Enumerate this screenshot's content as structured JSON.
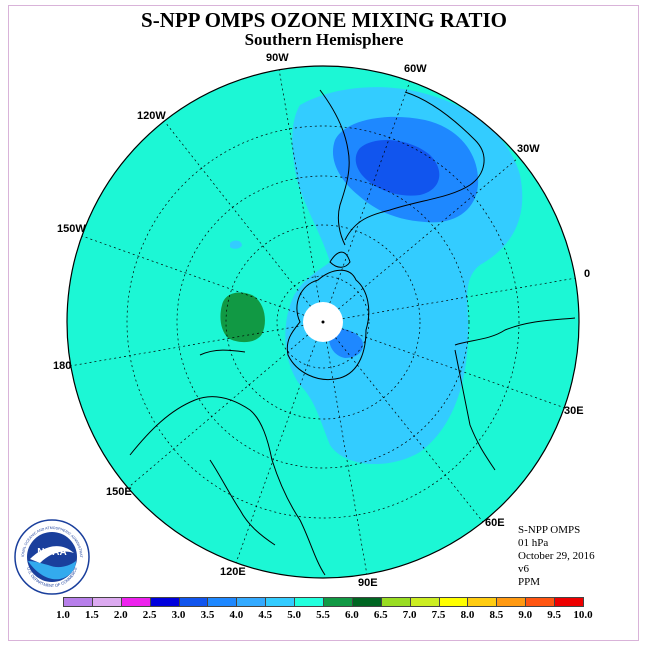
{
  "title": "S-NPP OMPS OZONE MIXING RATIO",
  "subtitle": "Southern Hemisphere",
  "longitude_labels": [
    {
      "label": "90W",
      "name": "lon-90w"
    },
    {
      "label": "60W",
      "name": "lon-60w"
    },
    {
      "label": "120W",
      "name": "lon-120w"
    },
    {
      "label": "30W",
      "name": "lon-30w"
    },
    {
      "label": "150W",
      "name": "lon-150w"
    },
    {
      "label": "0",
      "name": "lon-0"
    },
    {
      "label": "180",
      "name": "lon-180"
    },
    {
      "label": "30E",
      "name": "lon-30e"
    },
    {
      "label": "150E",
      "name": "lon-150e"
    },
    {
      "label": "60E",
      "name": "lon-60e"
    },
    {
      "label": "120E",
      "name": "lon-120e"
    },
    {
      "label": "90E",
      "name": "lon-90e"
    }
  ],
  "info": {
    "instrument": "S-NPP OMPS",
    "level": "01 hPa",
    "date": "October 29, 2016",
    "version": "v6",
    "units": "PPM"
  },
  "logo": {
    "text": "NOAA",
    "ring_text": "NATIONAL OCEANIC AND ATMOSPHERIC ADMINISTRATION",
    "ring_text_bottom": "U.S. DEPARTMENT OF COMMERCE",
    "icon": "noaa-logo"
  },
  "colorbar": {
    "labels": [
      "1.0",
      "1.5",
      "2.0",
      "2.5",
      "3.0",
      "3.5",
      "4.0",
      "4.5",
      "5.0",
      "5.5",
      "6.0",
      "6.5",
      "7.0",
      "7.5",
      "8.0",
      "8.5",
      "9.0",
      "9.5",
      "10.0"
    ],
    "colors": [
      "#b77fea",
      "#dcaaf0",
      "#ee22ee",
      "#0000dd",
      "#1155ee",
      "#1e88ff",
      "#33aaff",
      "#33ccff",
      "#22ffdd",
      "#119944",
      "#006622",
      "#99dd22",
      "#ccee22",
      "#ffff00",
      "#ffcc11",
      "#ff9911",
      "#ff5511",
      "#ee0000",
      "#885533"
    ]
  },
  "map": {
    "background_color": "#1cf7d5",
    "pole_color": "#ffffff",
    "coastline_color": "#000000"
  }
}
